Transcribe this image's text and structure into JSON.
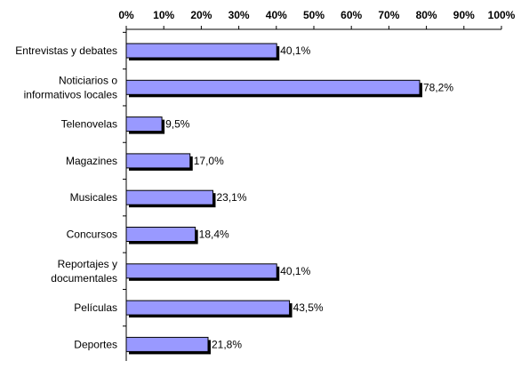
{
  "chart_data": {
    "type": "bar",
    "orientation": "horizontal",
    "categories": [
      "Entrevistas y debates",
      "Noticiarios o informativos locales",
      "Telenovelas",
      "Magazines",
      "Musicales",
      "Concursos",
      "Reportajes y documentales",
      "Películas",
      "Deportes"
    ],
    "category_lines": [
      [
        "Entrevistas y debates"
      ],
      [
        "Noticiarios o",
        "informativos locales"
      ],
      [
        "Telenovelas"
      ],
      [
        "Magazines"
      ],
      [
        "Musicales"
      ],
      [
        "Concursos"
      ],
      [
        "Reportajes y",
        "documentales"
      ],
      [
        "Películas"
      ],
      [
        "Deportes"
      ]
    ],
    "values": [
      40.1,
      78.2,
      9.5,
      17.0,
      23.1,
      18.4,
      40.1,
      43.5,
      21.8
    ],
    "value_labels": [
      "40,1%",
      "78,2%",
      "9,5%",
      "17,0%",
      "23,1%",
      "18,4%",
      "40,1%",
      "43,5%",
      "21,8%"
    ],
    "xlim": [
      0,
      100
    ],
    "x_ticks": [
      0,
      10,
      20,
      30,
      40,
      50,
      60,
      70,
      80,
      90,
      100
    ],
    "x_tick_labels": [
      "0%",
      "10%",
      "20%",
      "30%",
      "40%",
      "50%",
      "60%",
      "70%",
      "80%",
      "90%",
      "100%"
    ],
    "x_axis_position": "top",
    "grid": false,
    "legend": false,
    "title": "",
    "xlabel": "",
    "ylabel": "",
    "colors": {
      "bar_fill": "#9999ff",
      "bar_stroke": "#000000",
      "bar_shadow": "#000000",
      "axis": "#000000"
    }
  }
}
